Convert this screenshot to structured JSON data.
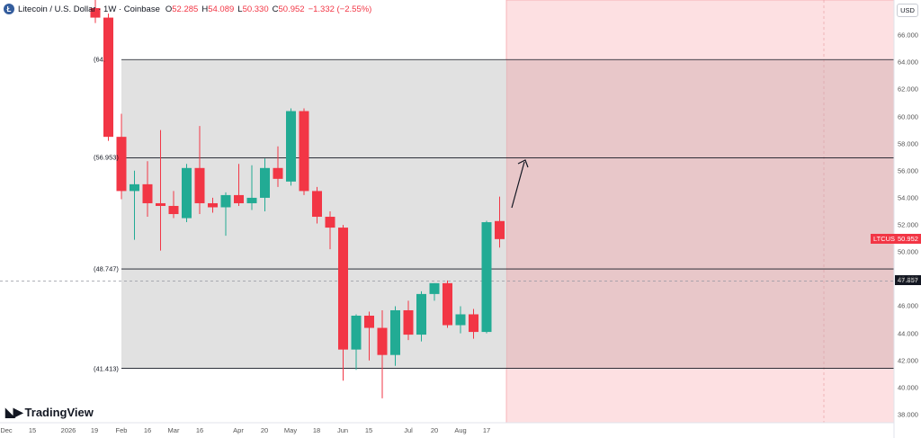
{
  "header": {
    "coin_icon": "litecoin-icon",
    "symbol": "Litecoin / U.S. Dollar · 1W · Coinbase",
    "o_label": "O",
    "o": "52.285",
    "h_label": "H",
    "h": "54.089",
    "l_label": "L",
    "l": "50.330",
    "c_label": "C",
    "c": "50.952",
    "change": "−1.332 (−2.55%)"
  },
  "currency": "USD",
  "brand": "TradingView",
  "price_tags": {
    "symbol_tag": "LTCUSD",
    "last": "50.952",
    "crosshair": "47.857"
  },
  "levels": [
    "(64.",
    "(56.953)",
    "(48.747)",
    "(41.413)"
  ],
  "colors": {
    "up": "#22ab94",
    "down": "#f23645",
    "box_gray": "#dadada",
    "box_red": "#f8c6ca"
  },
  "chart_data": {
    "type": "candlestick",
    "ylim": [
      37.4,
      68.6
    ],
    "y_ticks": [
      38,
      40,
      42,
      44,
      46,
      48,
      50,
      52,
      54,
      56,
      58,
      60,
      62,
      64,
      66
    ],
    "y_tick_labels": [
      "38.000",
      "40.000",
      "42.000",
      "44.000",
      "46.000",
      "48.000",
      "50.000",
      "52.000",
      "54.000",
      "56.000",
      "58.000",
      "60.000",
      "62.000",
      "64.000",
      "66.000"
    ],
    "x_labels": [
      "Dec",
      "15",
      "2026",
      "19",
      "Feb",
      "16",
      "Mar",
      "16",
      "Apr",
      "20",
      "May",
      "18",
      "Jun",
      "15",
      "Jul",
      "20",
      "Aug",
      "17"
    ],
    "candles": [
      {
        "o": 68.0,
        "h": 68.6,
        "l": 66.9,
        "c": 67.3
      },
      {
        "o": 67.3,
        "h": 67.6,
        "l": 58.2,
        "c": 58.5
      },
      {
        "o": 58.5,
        "h": 60.2,
        "l": 53.9,
        "c": 54.5
      },
      {
        "o": 54.5,
        "h": 56.0,
        "l": 50.9,
        "c": 55.0
      },
      {
        "o": 55.0,
        "h": 56.7,
        "l": 52.6,
        "c": 53.6
      },
      {
        "o": 53.6,
        "h": 59.0,
        "l": 50.1,
        "c": 53.4
      },
      {
        "o": 53.4,
        "h": 54.5,
        "l": 52.5,
        "c": 52.8
      },
      {
        "o": 52.5,
        "h": 56.5,
        "l": 52.2,
        "c": 56.2
      },
      {
        "o": 56.2,
        "h": 59.3,
        "l": 52.8,
        "c": 53.6
      },
      {
        "o": 53.6,
        "h": 54.0,
        "l": 52.9,
        "c": 53.3
      },
      {
        "o": 53.3,
        "h": 54.4,
        "l": 51.2,
        "c": 54.2
      },
      {
        "o": 54.2,
        "h": 56.5,
        "l": 53.4,
        "c": 53.6
      },
      {
        "o": 53.6,
        "h": 56.4,
        "l": 53.1,
        "c": 54.0
      },
      {
        "o": 54.0,
        "h": 56.9,
        "l": 53.0,
        "c": 56.2
      },
      {
        "o": 56.2,
        "h": 57.8,
        "l": 54.8,
        "c": 55.4
      },
      {
        "o": 55.2,
        "h": 60.6,
        "l": 54.9,
        "c": 60.4
      },
      {
        "o": 60.4,
        "h": 60.6,
        "l": 54.2,
        "c": 54.5
      },
      {
        "o": 54.5,
        "h": 54.8,
        "l": 52.1,
        "c": 52.6
      },
      {
        "o": 52.6,
        "h": 53.0,
        "l": 50.2,
        "c": 51.8
      },
      {
        "o": 51.8,
        "h": 52.0,
        "l": 40.5,
        "c": 42.8
      },
      {
        "o": 42.8,
        "h": 45.4,
        "l": 41.3,
        "c": 45.3
      },
      {
        "o": 45.3,
        "h": 45.6,
        "l": 42.0,
        "c": 44.4
      },
      {
        "o": 44.4,
        "h": 45.7,
        "l": 39.2,
        "c": 42.4
      },
      {
        "o": 42.4,
        "h": 46.0,
        "l": 41.6,
        "c": 45.7
      },
      {
        "o": 45.7,
        "h": 46.4,
        "l": 43.5,
        "c": 43.9
      },
      {
        "o": 43.9,
        "h": 47.1,
        "l": 43.4,
        "c": 46.9
      },
      {
        "o": 46.9,
        "h": 47.7,
        "l": 46.4,
        "c": 47.7
      },
      {
        "o": 47.7,
        "h": 47.9,
        "l": 44.4,
        "c": 44.6
      },
      {
        "o": 44.6,
        "h": 46.0,
        "l": 44.0,
        "c": 45.4
      },
      {
        "o": 45.4,
        "h": 45.8,
        "l": 43.6,
        "c": 44.1
      },
      {
        "o": 44.1,
        "h": 52.3,
        "l": 44.0,
        "c": 52.2
      },
      {
        "o": 52.285,
        "h": 54.089,
        "l": 50.33,
        "c": 50.952
      }
    ],
    "horizontal_levels": [
      64.2,
      56.953,
      48.747,
      41.413
    ],
    "crosshair_price": 47.857,
    "range_box": {
      "top": 64.2,
      "bottom": 41.413
    },
    "forecast_box": {
      "top": 68.6,
      "bottom": 37.4
    }
  }
}
